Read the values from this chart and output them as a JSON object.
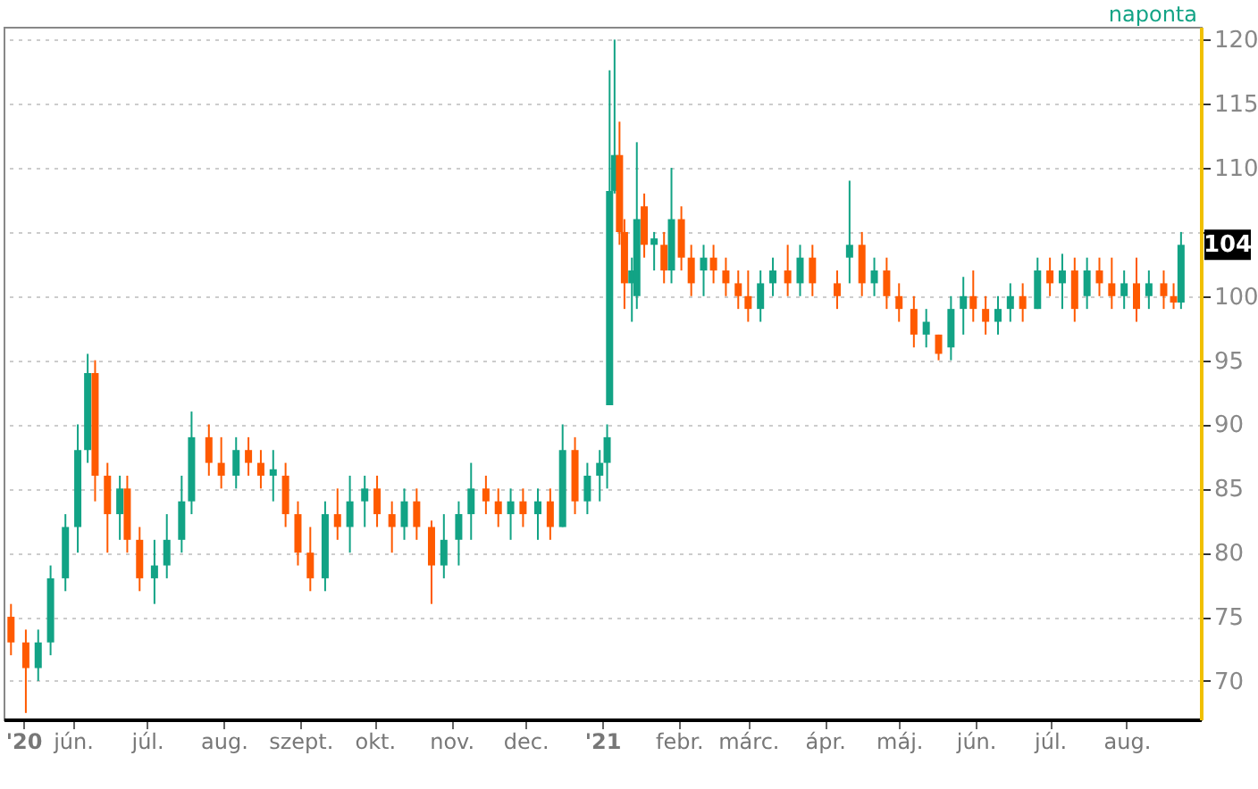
{
  "chart_data": {
    "type": "candlestick",
    "x": [
      "2020-05-07",
      "2020-05-13",
      "2020-05-18",
      "2020-05-23",
      "2020-05-29",
      "2020-06-03",
      "2020-06-07",
      "2020-06-10",
      "2020-06-15",
      "2020-06-20",
      "2020-06-23",
      "2020-06-28",
      "2020-07-04",
      "2020-07-09",
      "2020-07-15",
      "2020-07-19",
      "2020-07-26",
      "2020-07-31",
      "2020-08-06",
      "2020-08-11",
      "2020-08-16",
      "2020-08-21",
      "2020-08-26",
      "2020-08-31",
      "2020-09-05",
      "2020-09-11",
      "2020-09-16",
      "2020-09-21",
      "2020-09-27",
      "2020-10-02",
      "2020-10-08",
      "2020-10-13",
      "2020-10-18",
      "2020-10-24",
      "2020-10-29",
      "2020-11-04",
      "2020-11-09",
      "2020-11-15",
      "2020-11-20",
      "2020-11-25",
      "2020-11-30",
      "2020-12-06",
      "2020-12-11",
      "2020-12-16",
      "2020-12-21",
      "2020-12-26",
      "2020-12-31",
      "2021-01-03",
      "2021-01-04",
      "2021-01-06",
      "2021-01-08",
      "2021-01-10",
      "2021-01-13",
      "2021-01-15",
      "2021-01-18",
      "2021-01-22",
      "2021-01-26",
      "2021-01-29",
      "2021-02-02",
      "2021-02-06",
      "2021-02-11",
      "2021-02-15",
      "2021-02-20",
      "2021-02-25",
      "2021-03-01",
      "2021-03-06",
      "2021-03-11",
      "2021-03-17",
      "2021-03-22",
      "2021-03-27",
      "2021-04-06",
      "2021-04-11",
      "2021-04-16",
      "2021-04-21",
      "2021-04-26",
      "2021-05-01",
      "2021-05-07",
      "2021-05-12",
      "2021-05-17",
      "2021-05-22",
      "2021-05-27",
      "2021-05-31",
      "2021-06-05",
      "2021-06-10",
      "2021-06-15",
      "2021-06-20",
      "2021-06-26",
      "2021-07-01",
      "2021-07-06",
      "2021-07-11",
      "2021-07-16",
      "2021-07-21",
      "2021-07-26",
      "2021-07-31",
      "2021-08-05",
      "2021-08-10",
      "2021-08-16",
      "2021-08-20",
      "2021-08-23"
    ],
    "ohlc": [
      [
        75,
        76,
        72,
        73
      ],
      [
        73,
        74,
        67.5,
        71
      ],
      [
        71,
        74,
        70,
        73
      ],
      [
        73,
        79,
        72,
        78
      ],
      [
        78,
        83,
        77,
        82
      ],
      [
        82,
        90,
        80,
        88
      ],
      [
        88,
        95.5,
        87,
        94
      ],
      [
        94,
        95,
        84,
        86
      ],
      [
        86,
        87,
        80,
        83
      ],
      [
        83,
        86,
        81,
        85
      ],
      [
        85,
        86,
        80,
        81
      ],
      [
        81,
        82,
        77,
        78
      ],
      [
        78,
        81,
        76,
        79
      ],
      [
        79,
        83,
        78,
        81
      ],
      [
        81,
        86,
        80,
        84
      ],
      [
        84,
        91,
        83,
        89
      ],
      [
        89,
        90,
        86,
        87
      ],
      [
        87,
        89,
        85,
        86
      ],
      [
        86,
        89,
        85,
        88
      ],
      [
        88,
        89,
        86,
        87
      ],
      [
        87,
        88,
        85,
        86
      ],
      [
        86,
        88,
        84,
        86.5
      ],
      [
        86,
        87,
        82,
        83
      ],
      [
        83,
        84,
        79,
        80
      ],
      [
        80,
        82,
        77,
        78
      ],
      [
        78,
        84,
        77,
        83
      ],
      [
        83,
        85,
        81,
        82
      ],
      [
        82,
        86,
        80,
        84
      ],
      [
        84,
        86,
        82,
        85
      ],
      [
        85,
        86,
        82,
        83
      ],
      [
        83,
        84,
        80,
        82
      ],
      [
        82,
        85,
        81,
        84
      ],
      [
        84,
        85,
        81,
        82
      ],
      [
        82,
        82.5,
        76,
        79
      ],
      [
        79,
        83,
        78,
        81
      ],
      [
        81,
        84,
        79,
        83
      ],
      [
        83,
        87,
        81,
        85
      ],
      [
        85,
        86,
        83,
        84
      ],
      [
        84,
        85,
        82,
        83
      ],
      [
        83,
        85,
        81,
        84
      ],
      [
        84,
        85,
        82,
        83
      ],
      [
        83,
        85,
        81,
        84
      ],
      [
        84,
        85,
        81,
        82
      ],
      [
        82,
        90,
        82,
        88
      ],
      [
        88,
        89,
        83,
        84
      ],
      [
        84,
        87,
        83,
        86
      ],
      [
        86,
        88,
        84,
        87
      ],
      [
        87,
        90,
        85,
        89
      ],
      [
        91.5,
        117.6,
        91.5,
        108.2
      ],
      [
        108.2,
        120,
        108,
        111
      ],
      [
        111,
        113.6,
        104,
        105
      ],
      [
        105,
        106,
        99,
        101
      ],
      [
        101,
        103,
        98,
        102
      ],
      [
        100,
        112,
        99,
        106
      ],
      [
        107,
        108,
        103,
        104
      ],
      [
        104,
        105,
        102,
        104.5
      ],
      [
        104,
        105,
        101,
        102
      ],
      [
        102,
        110,
        101,
        106
      ],
      [
        106,
        107,
        102,
        103
      ],
      [
        103,
        104,
        100,
        101
      ],
      [
        102,
        104,
        100,
        103
      ],
      [
        103,
        104,
        101,
        102
      ],
      [
        102,
        103,
        100,
        101
      ],
      [
        101,
        102,
        99,
        100
      ],
      [
        100,
        102,
        98,
        99
      ],
      [
        99,
        102,
        98,
        101
      ],
      [
        101,
        103,
        100,
        102
      ],
      [
        102,
        104,
        100,
        101
      ],
      [
        101,
        104,
        100,
        103
      ],
      [
        103,
        104,
        100,
        101
      ],
      [
        101,
        102,
        99,
        100
      ],
      [
        103,
        109,
        101,
        104
      ],
      [
        104,
        105,
        100,
        101
      ],
      [
        101,
        103,
        100,
        102
      ],
      [
        102,
        103,
        99,
        100
      ],
      [
        100,
        101,
        98,
        99
      ],
      [
        99,
        100,
        96,
        97
      ],
      [
        97,
        99,
        96,
        98
      ],
      [
        97,
        97,
        95,
        95.5
      ],
      [
        96,
        100,
        95,
        99
      ],
      [
        99,
        101.5,
        97,
        100
      ],
      [
        100,
        102,
        98,
        99
      ],
      [
        99,
        100,
        97,
        98
      ],
      [
        98,
        100,
        97,
        99
      ],
      [
        99,
        101,
        98,
        100
      ],
      [
        100,
        101,
        98,
        99
      ],
      [
        99,
        103,
        99,
        102
      ],
      [
        102,
        103,
        100,
        101
      ],
      [
        101,
        103.3,
        99,
        102
      ],
      [
        102,
        103,
        98,
        99
      ],
      [
        100,
        103,
        99,
        102
      ],
      [
        102,
        103,
        100,
        101
      ],
      [
        101,
        103,
        99,
        100
      ],
      [
        100,
        102,
        99,
        101
      ],
      [
        101,
        103,
        98,
        99
      ],
      [
        100,
        102,
        99,
        101
      ],
      [
        101,
        102,
        99,
        100
      ],
      [
        100,
        101,
        99,
        99.5
      ],
      [
        99.5,
        105,
        99,
        104
      ]
    ],
    "colors": [
      "#ff5a00",
      "#ff5a00",
      "#12a385",
      "#12a385",
      "#12a385",
      "#12a385",
      "#12a385",
      "#ff5a00",
      "#ff5a00",
      "#12a385",
      "#ff5a00",
      "#ff5a00",
      "#12a385",
      "#12a385",
      "#12a385",
      "#12a385",
      "#ff5a00",
      "#ff5a00",
      "#12a385",
      "#ff5a00",
      "#ff5a00",
      "#12a385",
      "#ff5a00",
      "#ff5a00",
      "#ff5a00",
      "#12a385",
      "#ff5a00",
      "#12a385",
      "#12a385",
      "#ff5a00",
      "#ff5a00",
      "#12a385",
      "#ff5a00",
      "#ff5a00",
      "#12a385",
      "#12a385",
      "#12a385",
      "#ff5a00",
      "#ff5a00",
      "#12a385",
      "#ff5a00",
      "#12a385",
      "#ff5a00",
      "#12a385",
      "#ff5a00",
      "#12a385",
      "#12a385",
      "#12a385",
      "#12a385",
      "#12a385",
      "#ff5a00",
      "#ff5a00",
      "#12a385",
      "#12a385",
      "#ff5a00",
      "#12a385",
      "#ff5a00",
      "#12a385",
      "#ff5a00",
      "#ff5a00",
      "#12a385",
      "#ff5a00",
      "#ff5a00",
      "#ff5a00",
      "#ff5a00",
      "#12a385",
      "#12a385",
      "#ff5a00",
      "#12a385",
      "#ff5a00",
      "#ff5a00",
      "#12a385",
      "#ff5a00",
      "#12a385",
      "#ff5a00",
      "#ff5a00",
      "#ff5a00",
      "#12a385",
      "#ff5a00",
      "#12a385",
      "#12a385",
      "#ff5a00",
      "#ff5a00",
      "#12a385",
      "#12a385",
      "#ff5a00",
      "#12a385",
      "#ff5a00",
      "#12a385",
      "#ff5a00",
      "#12a385",
      "#ff5a00",
      "#ff5a00",
      "#12a385",
      "#ff5a00",
      "#12a385",
      "#ff5a00",
      "#ff5a00",
      "#12a385"
    ],
    "xlim": [
      "2020-05-04",
      "2021-08-31"
    ],
    "xticks": [
      {
        "value": "2020-05-12",
        "label": "'20"
      },
      {
        "value": "2020-06-01",
        "label": "jún."
      },
      {
        "value": "2020-07-01",
        "label": "júl."
      },
      {
        "value": "2020-08-01",
        "label": "aug."
      },
      {
        "value": "2020-09-01",
        "label": "szept."
      },
      {
        "value": "2020-10-01",
        "label": "okt."
      },
      {
        "value": "2020-11-01",
        "label": "nov."
      },
      {
        "value": "2020-12-01",
        "label": "dec."
      },
      {
        "value": "2021-01-01",
        "label": "'21"
      },
      {
        "value": "2021-02-01",
        "label": "febr."
      },
      {
        "value": "2021-03-01",
        "label": "márc."
      },
      {
        "value": "2021-04-01",
        "label": "ápr."
      },
      {
        "value": "2021-05-01",
        "label": "máj."
      },
      {
        "value": "2021-06-01",
        "label": "jún."
      },
      {
        "value": "2021-07-01",
        "label": "júl."
      },
      {
        "value": "2021-08-01",
        "label": "aug."
      }
    ],
    "ylim": [
      67,
      121
    ],
    "yticks": [
      70,
      75,
      80,
      85,
      90,
      95,
      100,
      {
        "value": 105,
        "label": null
      },
      110,
      115,
      120
    ],
    "grid": "y",
    "annotations": [
      "naponta",
      {
        "text": "104",
        "x": "2021-08-23",
        "y": 104
      }
    ]
  }
}
